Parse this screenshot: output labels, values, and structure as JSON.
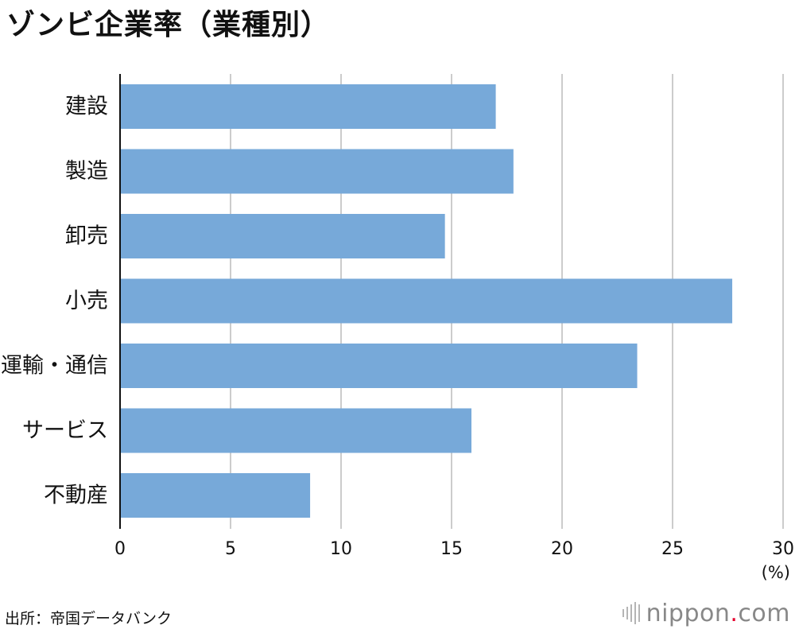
{
  "title": "ゾンビ企業率（業種別）",
  "chart_data": {
    "type": "bar",
    "orientation": "horizontal",
    "title": "ゾンビ企業率（業種別）",
    "categories": [
      "建設",
      "製造",
      "卸売",
      "小売",
      "運輸・通信",
      "サービス",
      "不動産"
    ],
    "values": [
      17.0,
      17.8,
      14.7,
      27.7,
      23.4,
      15.9,
      8.6
    ],
    "xlim": [
      0,
      30
    ],
    "xticks": [
      0,
      5,
      10,
      15,
      20,
      25,
      30
    ],
    "tick_labels": [
      "0",
      "5",
      "10",
      "15",
      "20",
      "25",
      "30"
    ],
    "unit_label": "(%)",
    "xlabel": "",
    "ylabel": "",
    "grid": true,
    "bar_color": "#77a9d9",
    "grid_color": "#cccccc"
  },
  "footer": {
    "source": "出所：帝国データバンク",
    "brand_name": "nippon",
    "brand_dot": ".",
    "brand_suffix": "com",
    "brand_dot_color": "#e6002d"
  }
}
